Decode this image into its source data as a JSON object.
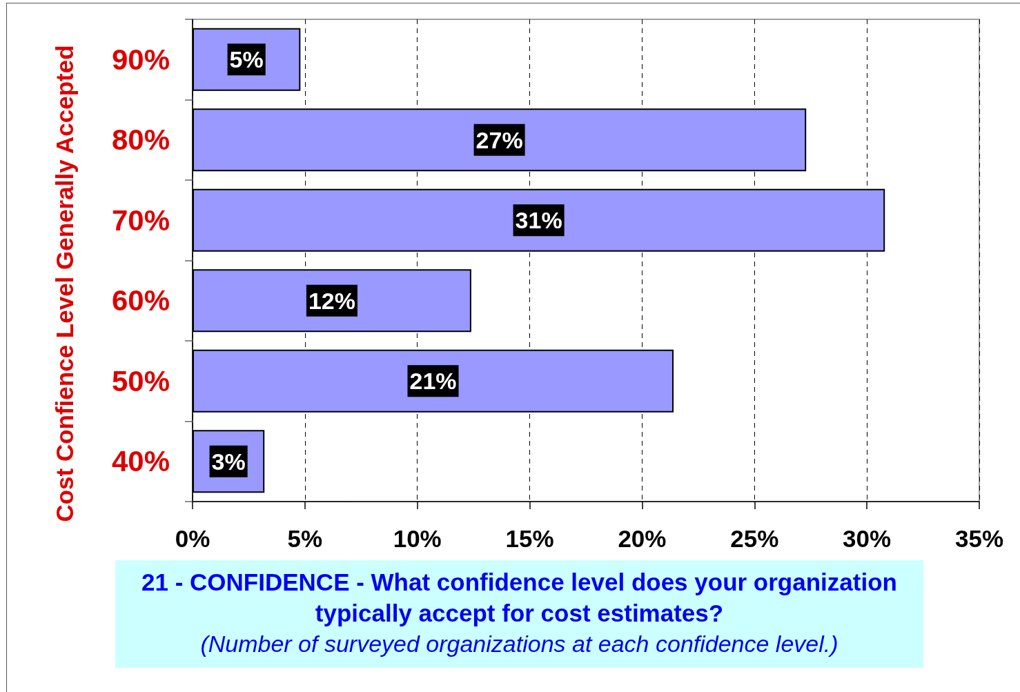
{
  "chart_data": {
    "type": "bar",
    "orientation": "horizontal",
    "title": "21 - CONFIDENCE - What confidence level does your organization typically accept for cost estimates?",
    "subtitle": "(Number of surveyed organizations at each confidence level.)",
    "ylabel": "Cost Confience Level Generally Accepted",
    "categories": [
      "90%",
      "80%",
      "70%",
      "60%",
      "50%",
      "40%"
    ],
    "values": [
      4.8,
      27.3,
      30.8,
      12.4,
      21.4,
      3.2
    ],
    "value_labels": [
      "5%",
      "27%",
      "31%",
      "12%",
      "21%",
      "3%"
    ],
    "color": "#9999ff",
    "xlim": [
      0,
      35
    ],
    "xticks": [
      {
        "value": 0,
        "label": "0%"
      },
      {
        "value": 5,
        "label": "5%"
      },
      {
        "value": 10,
        "label": "10%"
      },
      {
        "value": 15,
        "label": "15%"
      },
      {
        "value": 20,
        "label": "20%"
      },
      {
        "value": 25,
        "label": "25%"
      },
      {
        "value": 30,
        "label": "30%"
      },
      {
        "value": 35,
        "label": "35%"
      }
    ],
    "grid": "x"
  }
}
